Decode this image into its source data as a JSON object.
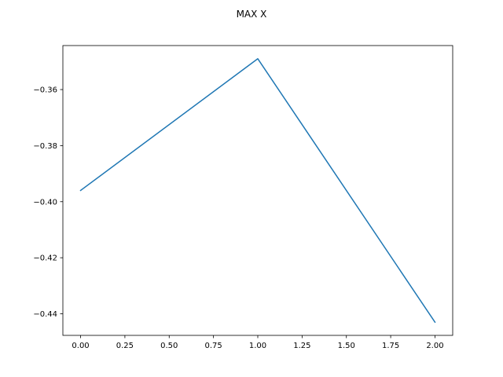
{
  "chart_data": {
    "type": "line",
    "title": "MAX X",
    "xlabel": "",
    "ylabel": "",
    "x": [
      0,
      1,
      2
    ],
    "series": [
      {
        "values": [
          -0.396,
          -0.349,
          -0.443
        ],
        "color": "#1f77b4"
      }
    ],
    "xlim": [
      -0.1,
      2.1
    ],
    "ylim": [
      -0.4477,
      -0.3443
    ],
    "xticks": [
      0.0,
      0.25,
      0.5,
      0.75,
      1.0,
      1.25,
      1.5,
      1.75,
      2.0
    ],
    "xtick_labels": [
      "0.00",
      "0.25",
      "0.50",
      "0.75",
      "1.00",
      "1.25",
      "1.50",
      "1.75",
      "2.00"
    ],
    "yticks": [
      -0.36,
      -0.38,
      -0.4,
      -0.42,
      -0.44
    ],
    "ytick_labels": [
      "−0.36",
      "−0.38",
      "−0.40",
      "−0.42",
      "−0.44"
    ],
    "grid": false,
    "legend": "none"
  }
}
